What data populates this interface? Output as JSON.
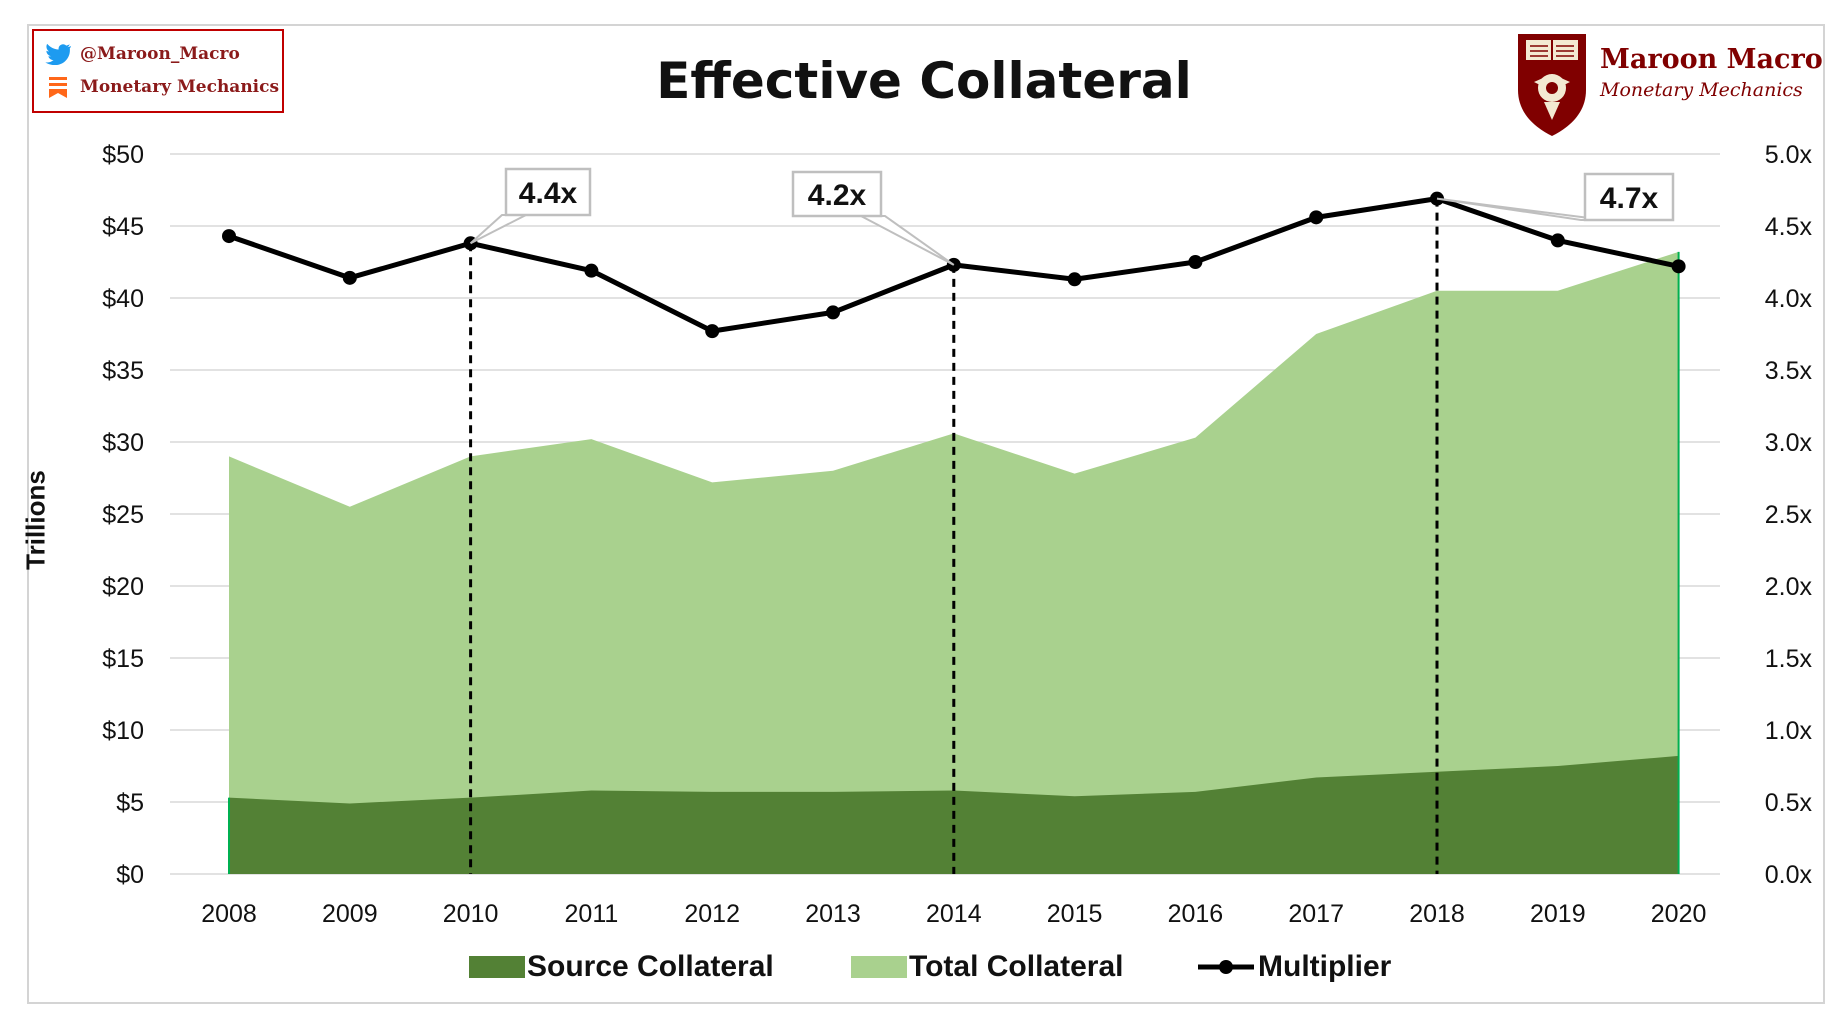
{
  "social": {
    "twitter_handle": "@Maroon_Macro",
    "newsletter": "Monetary Mechanics"
  },
  "brand": {
    "name": "Maroon Macro",
    "subtitle": "Monetary Mechanics"
  },
  "chart_data": {
    "type": "area",
    "title": "Effective Collateral",
    "ylabel": "Trillions",
    "ylabel_right": "",
    "xlabel": "",
    "categories": [
      "2008",
      "2009",
      "2010",
      "2011",
      "2012",
      "2013",
      "2014",
      "2015",
      "2016",
      "2017",
      "2018",
      "2019",
      "2020"
    ],
    "ylim": [
      0,
      50
    ],
    "y_ticks": [
      "$0",
      "$5",
      "$10",
      "$15",
      "$20",
      "$25",
      "$30",
      "$35",
      "$40",
      "$45",
      "$50"
    ],
    "y2lim": [
      0,
      5
    ],
    "y2_ticks": [
      "0.0x",
      "0.5x",
      "1.0x",
      "1.5x",
      "2.0x",
      "2.5x",
      "3.0x",
      "3.5x",
      "4.0x",
      "4.5x",
      "5.0x"
    ],
    "grid": true,
    "legend_position": "bottom",
    "series": [
      {
        "name": "Source Collateral",
        "type": "area",
        "color": "#538135",
        "values": [
          5.3,
          4.9,
          5.3,
          5.8,
          5.7,
          5.7,
          5.8,
          5.4,
          5.7,
          6.7,
          7.1,
          7.5,
          8.2
        ]
      },
      {
        "name": "Total Collateral",
        "type": "area",
        "color": "#a9d18e",
        "values": [
          29.0,
          25.5,
          29.0,
          30.2,
          27.2,
          28.0,
          30.6,
          27.8,
          30.3,
          37.5,
          40.5,
          40.5,
          43.2
        ]
      },
      {
        "name": "Multiplier",
        "type": "line",
        "axis": "right",
        "color": "#000000",
        "values": [
          4.43,
          4.14,
          4.38,
          4.19,
          3.77,
          3.9,
          4.23,
          4.13,
          4.25,
          4.56,
          4.69,
          4.4,
          4.22
        ]
      }
    ],
    "annotations": [
      {
        "category": "2010",
        "label": "4.4x"
      },
      {
        "category": "2014",
        "label": "4.2x"
      },
      {
        "category": "2018",
        "label": "4.7x"
      }
    ]
  }
}
